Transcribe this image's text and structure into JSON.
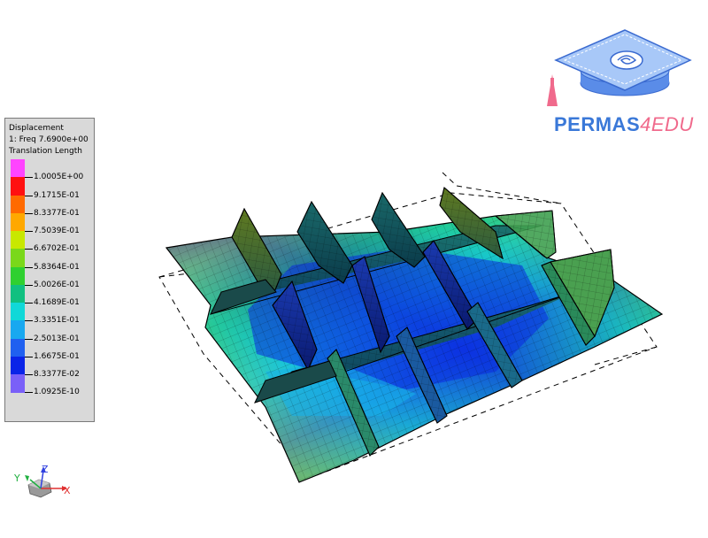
{
  "legend": {
    "title": "Displacement",
    "mode": "1: Freq 7.6900e+00",
    "quantity": "Translation Length",
    "colors": [
      "#ff44ff",
      "#ff1010",
      "#ff6a00",
      "#ffa800",
      "#c8e800",
      "#7ad81a",
      "#2fd030",
      "#10c080",
      "#10d8d8",
      "#18a8f0",
      "#2060f0",
      "#0a24e8",
      "#7a60f8"
    ],
    "labels": [
      "1.0005E+00",
      "9.1715E-01",
      "8.3377E-01",
      "7.5039E-01",
      "6.6702E-01",
      "5.8364E-01",
      "5.0026E-01",
      "4.1689E-01",
      "3.3351E-01",
      "2.5013E-01",
      "1.6675E-01",
      "8.3377E-02",
      "1.0925E-10"
    ]
  },
  "logo": {
    "brand": "PERMAS",
    "suffix": "4EDU"
  },
  "triad": {
    "x_label": "X",
    "y_label": "Y",
    "z_label": "Z"
  }
}
